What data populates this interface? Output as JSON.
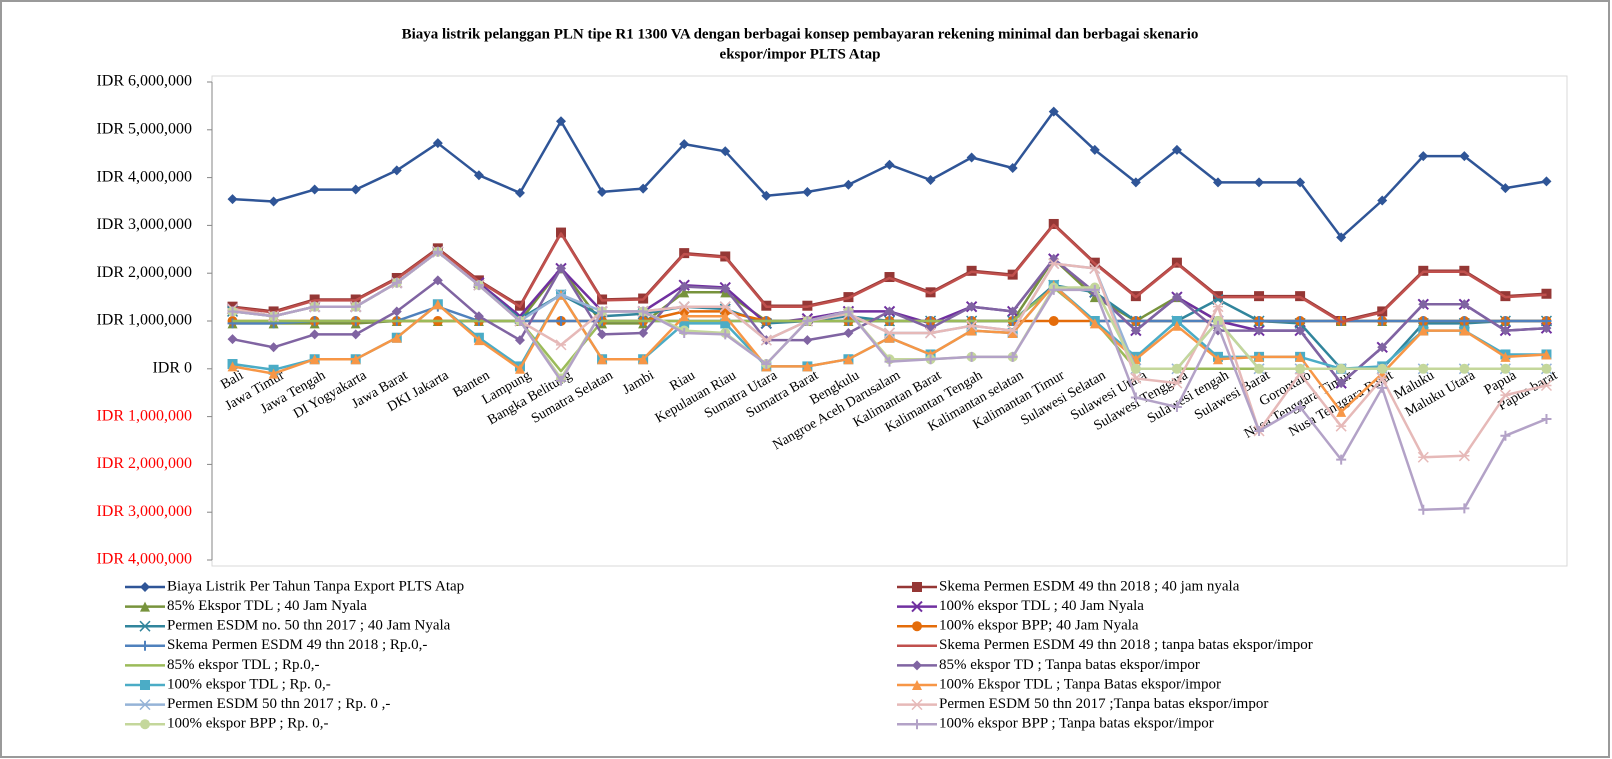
{
  "chart_data": {
    "type": "line",
    "title": [
      "Biaya listrik pelanggan PLN  tipe R1 1300 VA dengan berbagai konsep pembayaran rekening minimal  dan berbagai skenario",
      "ekspor/impor  PLTS Atap"
    ],
    "categories": [
      "Bali",
      "Jawa Timur",
      "Jawa Tengah",
      "DI Yogyakarta",
      "Jawa Barat",
      "DKI Jakarta",
      "Banten",
      "Lampung",
      "Bangka Belitung",
      "Sumatra Selatan",
      "Jambi",
      "Riau",
      "Kepulauan Riau",
      "Sumatra Utara",
      "Sumatra Barat",
      "Bengkulu",
      "Nangroe Aceh Darusalam",
      "Kalimantan Barat",
      "Kalimantan Tengah",
      "Kalimantan selatan",
      "Kalimantan Timur",
      "Sulawesi Selatan",
      "Sulawesi Utara",
      "Sulawesi Tenggara",
      "Sulawesi tengah",
      "Sulawesi Barat",
      "Gorontalo",
      "Nusa Tenggara Timur",
      "Nusa Tenggara Barat",
      "Maluku",
      "Maluku Utara",
      "Papua",
      "Papua barat"
    ],
    "ylim": [
      -4000000,
      6000000
    ],
    "yticks": [
      {
        "value": -4000000,
        "label": "IDR 4,000,000"
      },
      {
        "value": -3000000,
        "label": "IDR 3,000,000"
      },
      {
        "value": -2000000,
        "label": "IDR 2,000,000"
      },
      {
        "value": -1000000,
        "label": "IDR 1,000,000"
      },
      {
        "value": 0,
        "label": "IDR 0"
      },
      {
        "value": 1000000,
        "label": "IDR 1,000,000"
      },
      {
        "value": 2000000,
        "label": "IDR 2,000,000"
      },
      {
        "value": 3000000,
        "label": "IDR 3,000,000"
      },
      {
        "value": 4000000,
        "label": "IDR 4,000,000"
      },
      {
        "value": 5000000,
        "label": "IDR 5,000,000"
      },
      {
        "value": 6000000,
        "label": "IDR 6,000,000"
      }
    ],
    "negative_tick_color": "#ff0000",
    "grid": false,
    "series": [
      {
        "name": "Biaya Listrik Per Tahun Tanpa Export PLTS Atap",
        "color": "#2f5597",
        "marker": "diamond",
        "values": [
          3550000,
          3500000,
          3750000,
          3750000,
          4150000,
          4720000,
          4050000,
          3680000,
          5180000,
          3700000,
          3770000,
          4700000,
          4550000,
          3620000,
          3700000,
          3850000,
          4270000,
          3950000,
          4420000,
          4200000,
          5380000,
          4580000,
          3900000,
          4580000,
          3900000,
          3900000,
          3900000,
          2750000,
          3520000,
          4450000,
          4450000,
          3780000,
          3920000
        ]
      },
      {
        "name": "Skema Permen ESDM 49 thn 2018 ; 40 jam nyala",
        "color": "#953735",
        "marker": "square",
        "values": [
          1300000,
          1200000,
          1450000,
          1450000,
          1900000,
          2520000,
          1850000,
          1320000,
          2850000,
          1450000,
          1470000,
          2420000,
          2350000,
          1320000,
          1320000,
          1500000,
          1920000,
          1600000,
          2050000,
          1970000,
          3030000,
          2220000,
          1520000,
          2220000,
          1520000,
          1520000,
          1520000,
          1000000,
          1200000,
          2050000,
          2050000,
          1520000,
          1570000
        ]
      },
      {
        "name": "85% Ekspor TDL ; 40 Jam Nyala",
        "color": "#77933c",
        "marker": "triangle",
        "values": [
          950000,
          950000,
          950000,
          950000,
          1000000,
          1000000,
          1000000,
          1000000,
          2100000,
          950000,
          950000,
          1600000,
          1600000,
          1000000,
          1000000,
          1000000,
          1000000,
          1000000,
          1000000,
          1000000,
          2300000,
          1500000,
          1000000,
          1500000,
          1000000,
          1000000,
          1000000,
          1000000,
          1000000,
          1000000,
          1000000,
          1000000,
          1000000
        ]
      },
      {
        "name": "100% ekspor TDL ; 40 Jam Nyala",
        "color": "#7030a0",
        "marker": "x",
        "values": [
          1250000,
          1100000,
          1300000,
          1300000,
          1800000,
          2450000,
          1800000,
          1100000,
          2100000,
          1200000,
          1200000,
          1750000,
          1700000,
          950000,
          1050000,
          1200000,
          1200000,
          950000,
          1300000,
          1200000,
          2300000,
          1600000,
          800000,
          1500000,
          1000000,
          800000,
          800000,
          -300000,
          450000,
          1350000,
          1350000,
          800000,
          850000
        ]
      },
      {
        "name": "Permen ESDM no. 50 thn 2017 ; 40 Jam Nyala",
        "color": "#31859c",
        "marker": "star",
        "values": [
          1200000,
          1100000,
          1300000,
          1300000,
          1800000,
          2450000,
          1750000,
          1050000,
          1550000,
          1100000,
          1150000,
          1300000,
          1250000,
          950000,
          1000000,
          1100000,
          1000000,
          1000000,
          1000000,
          1000000,
          1750000,
          1600000,
          1000000,
          1000000,
          1450000,
          1000000,
          950000,
          0,
          0,
          950000,
          950000,
          1000000,
          1000000
        ]
      },
      {
        "name": "100% ekspor BPP; 40 Jam Nyala",
        "color": "#e46c0a",
        "marker": "circle",
        "values": [
          1000000,
          1000000,
          1000000,
          1000000,
          1000000,
          1000000,
          1000000,
          1000000,
          1000000,
          1000000,
          1000000,
          1200000,
          1200000,
          1000000,
          1000000,
          1000000,
          1000000,
          1000000,
          1000000,
          1000000,
          1000000,
          1000000,
          1000000,
          1000000,
          1000000,
          1000000,
          1000000,
          1000000,
          1000000,
          1000000,
          1000000,
          1000000,
          1000000
        ]
      },
      {
        "name": "Skema Permen ESDM 49 thn 2018 ; Rp.0,-",
        "color": "#4f81bd",
        "marker": "plus",
        "values": [
          950000,
          950000,
          1000000,
          1000000,
          1000000,
          1300000,
          1000000,
          1000000,
          1000000,
          1000000,
          1000000,
          1000000,
          1000000,
          1000000,
          1000000,
          1000000,
          1000000,
          1000000,
          1000000,
          1000000,
          1700000,
          1000000,
          1000000,
          1000000,
          1000000,
          1000000,
          1000000,
          1000000,
          1000000,
          1000000,
          1000000,
          1000000,
          1000000
        ]
      },
      {
        "name": "Skema Permen ESDM 49 thn 2018 ; tanpa batas ekspor/impor",
        "color": "#c0504d",
        "marker": "none",
        "values": [
          1280000,
          1180000,
          1430000,
          1430000,
          1880000,
          2500000,
          1830000,
          1300000,
          2830000,
          1430000,
          1450000,
          2400000,
          2330000,
          1300000,
          1300000,
          1480000,
          1900000,
          1580000,
          2030000,
          1950000,
          3010000,
          2200000,
          1500000,
          2200000,
          1500000,
          1500000,
          1500000,
          980000,
          1180000,
          2030000,
          2030000,
          1500000,
          1550000
        ]
      },
      {
        "name": "85% ekspor TDL ; Rp.0,-",
        "color": "#9bbb59",
        "marker": "none",
        "values": [
          1000000,
          1000000,
          1000000,
          1000000,
          1000000,
          1000000,
          1000000,
          1000000,
          -50000,
          1000000,
          1000000,
          1000000,
          1000000,
          1000000,
          1000000,
          1000000,
          1000000,
          1000000,
          1000000,
          1000000,
          1700000,
          1000000,
          0,
          0,
          0,
          0,
          0,
          0,
          0,
          0,
          0,
          0,
          0
        ]
      },
      {
        "name": "85% ekspor TD ; Tanpa batas ekspor/impor",
        "color": "#8064a2",
        "marker": "diamond",
        "values": [
          620000,
          450000,
          720000,
          720000,
          1200000,
          1850000,
          1100000,
          600000,
          2100000,
          720000,
          750000,
          1720000,
          1680000,
          600000,
          600000,
          750000,
          1200000,
          850000,
          1300000,
          1200000,
          2300000,
          1600000,
          800000,
          1500000,
          800000,
          800000,
          800000,
          -300000,
          450000,
          1350000,
          1350000,
          800000,
          850000
        ]
      },
      {
        "name": "100% ekspor TDL ; Rp. 0,-",
        "color": "#4bacc6",
        "marker": "square",
        "values": [
          100000,
          -20000,
          200000,
          200000,
          650000,
          1350000,
          650000,
          50000,
          1550000,
          200000,
          200000,
          950000,
          950000,
          50000,
          50000,
          200000,
          650000,
          300000,
          800000,
          750000,
          1750000,
          1000000,
          250000,
          1000000,
          250000,
          250000,
          250000,
          0,
          50000,
          800000,
          800000,
          300000,
          300000
        ]
      },
      {
        "name": "100% Ekspor TDL ; Tanpa Batas ekspor/impor",
        "color": "#f79646",
        "marker": "triangle",
        "values": [
          50000,
          -100000,
          200000,
          200000,
          650000,
          1350000,
          600000,
          0,
          1550000,
          200000,
          200000,
          1100000,
          1100000,
          50000,
          50000,
          200000,
          650000,
          300000,
          800000,
          750000,
          1750000,
          950000,
          200000,
          900000,
          200000,
          250000,
          250000,
          -900000,
          -100000,
          800000,
          800000,
          250000,
          300000
        ]
      },
      {
        "name": "Permen ESDM 50 thn 2017 ; Rp. 0 ,-",
        "color": "#95b3d7",
        "marker": "star",
        "values": [
          1250000,
          1100000,
          1300000,
          1300000,
          1800000,
          2450000,
          1750000,
          1000000,
          1550000,
          1200000,
          1200000,
          1300000,
          1300000,
          600000,
          1000000,
          1150000,
          750000,
          750000,
          900000,
          800000,
          2200000,
          2100000,
          0,
          0,
          1000000,
          0,
          0,
          0,
          0,
          0,
          0,
          0,
          0
        ]
      },
      {
        "name": "Permen ESDM 50 thn 2017 ;Tanpa batas ekspor/impor",
        "color": "#e6b9b8",
        "marker": "star",
        "values": [
          1250000,
          1100000,
          1300000,
          1300000,
          1800000,
          2450000,
          1750000,
          1000000,
          500000,
          1200000,
          1200000,
          1300000,
          1300000,
          600000,
          1000000,
          1150000,
          750000,
          750000,
          900000,
          800000,
          2200000,
          2100000,
          -200000,
          -300000,
          1300000,
          -1300000,
          -100000,
          -1200000,
          -200000,
          -1850000,
          -1820000,
          -550000,
          -350000
        ]
      },
      {
        "name": "100% ekspor BPP ; Rp. 0,-",
        "color": "#c4d79b",
        "marker": "circle",
        "values": [
          1200000,
          1100000,
          1300000,
          1300000,
          1800000,
          2450000,
          1750000,
          1000000,
          -200000,
          1200000,
          1200000,
          800000,
          750000,
          100000,
          1000000,
          1200000,
          200000,
          200000,
          250000,
          250000,
          1700000,
          1700000,
          0,
          0,
          1000000,
          0,
          0,
          0,
          0,
          0,
          0,
          0,
          0
        ]
      },
      {
        "name": "100% ekspor BPP ; Tanpa batas ekspor/impor",
        "color": "#b3a2c7",
        "marker": "plus",
        "values": [
          1200000,
          1100000,
          1300000,
          1300000,
          1800000,
          2450000,
          1750000,
          1000000,
          -250000,
          1200000,
          1200000,
          750000,
          720000,
          100000,
          1000000,
          1200000,
          150000,
          200000,
          250000,
          250000,
          1650000,
          1650000,
          -600000,
          -800000,
          900000,
          -1300000,
          -800000,
          -1900000,
          -400000,
          -2950000,
          -2920000,
          -1400000,
          -1050000
        ]
      }
    ]
  }
}
